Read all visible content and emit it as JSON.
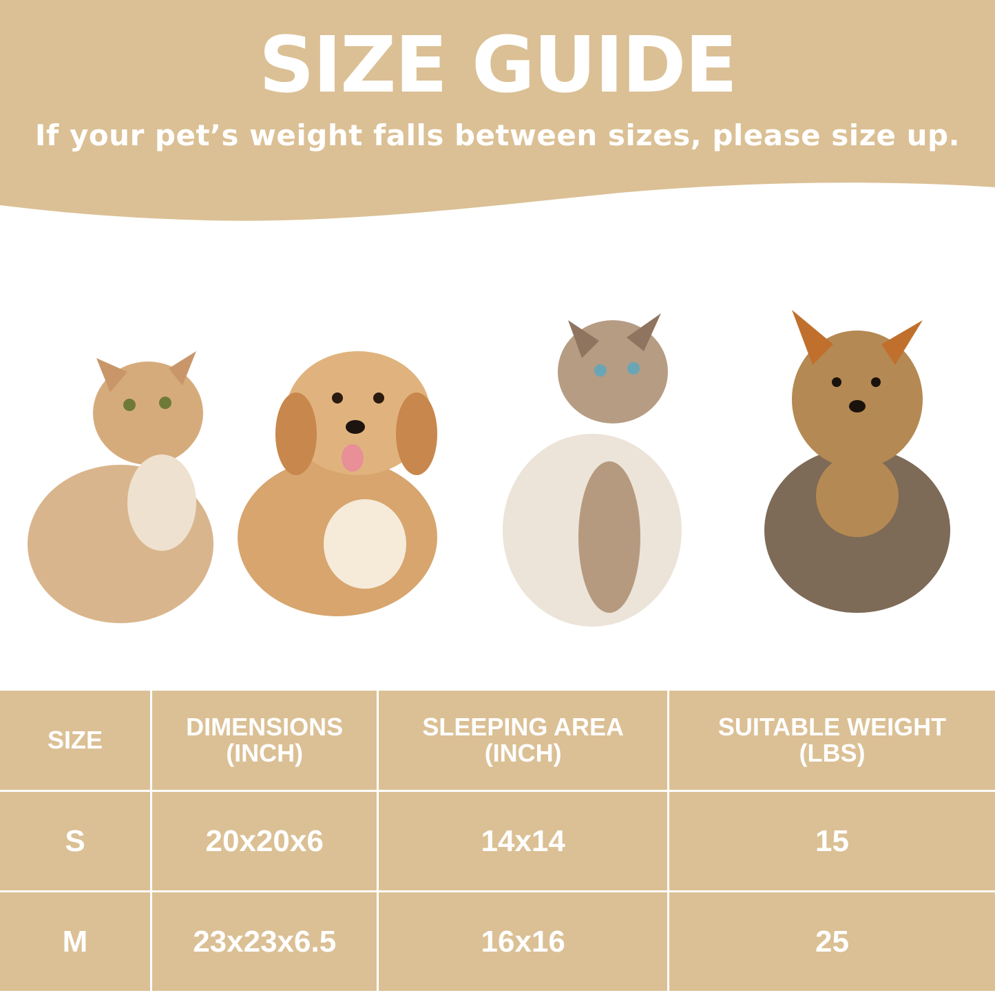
{
  "header": {
    "title": "SIZE GUIDE",
    "subtitle": "If your pet’s weight falls between sizes, please size up."
  },
  "colors": {
    "accent": "#dbc095",
    "text": "#ffffff"
  },
  "pets": [
    "cat-golden",
    "dog-havanese",
    "cat-ragdoll",
    "dog-yorkshire-terrier"
  ],
  "table": {
    "headers": [
      {
        "line1": "SIZE",
        "line2": ""
      },
      {
        "line1": "DIMENSIONS",
        "line2": "(INCH)"
      },
      {
        "line1": "SLEEPING AREA",
        "line2": "(INCH)"
      },
      {
        "line1": "SUITABLE WEIGHT",
        "line2": "(LBS)"
      }
    ],
    "rows": [
      [
        "S",
        "20x20x6",
        "14x14",
        "15"
      ],
      [
        "M",
        "23x23x6.5",
        "16x16",
        "25"
      ]
    ]
  }
}
